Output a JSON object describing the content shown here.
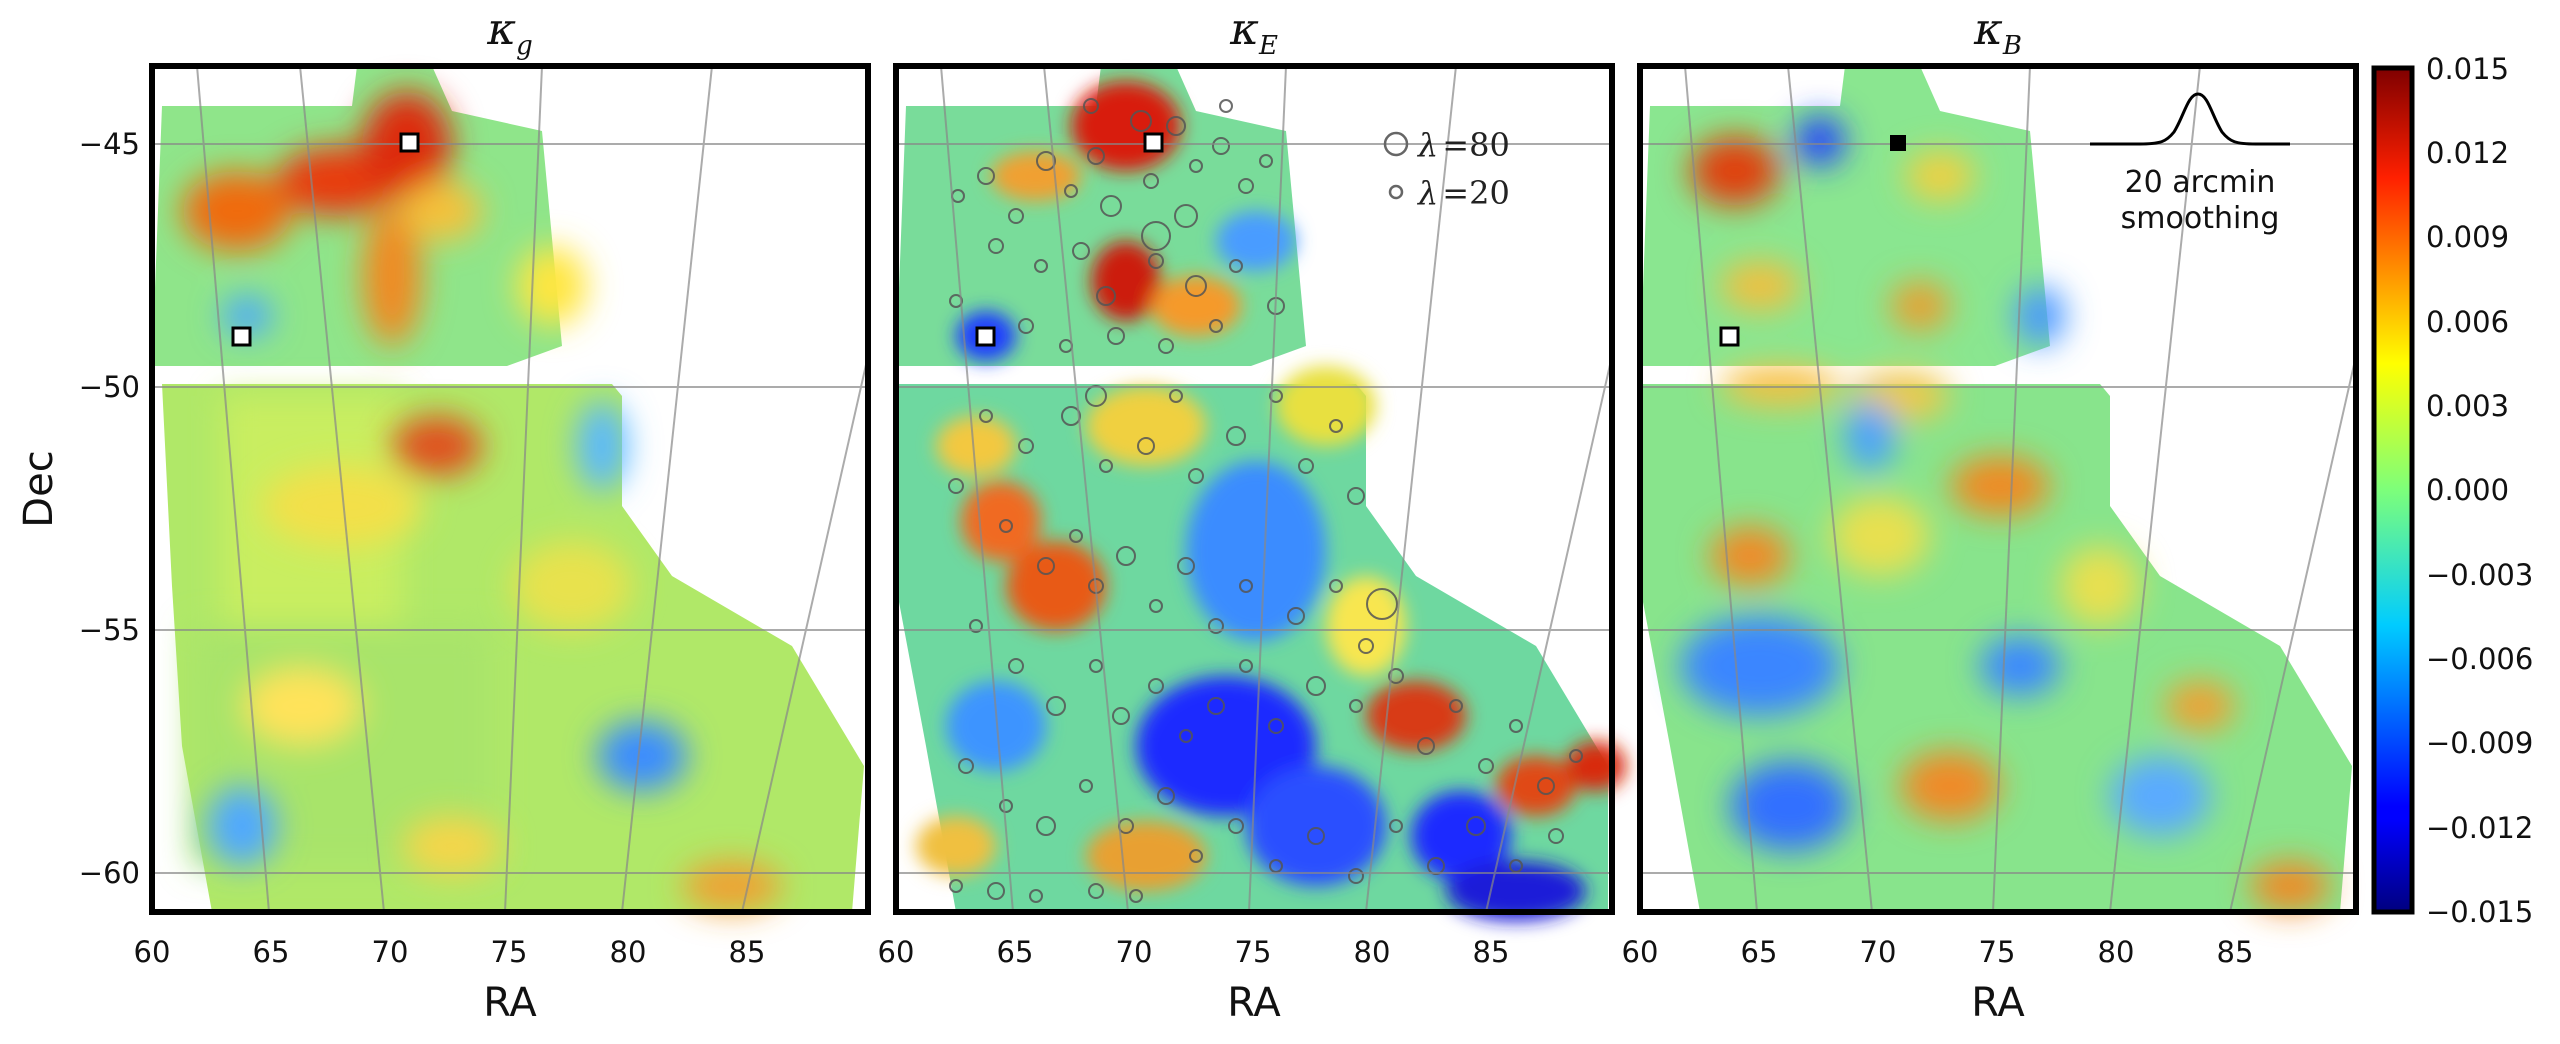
{
  "chart_data": {
    "type": "heatmap",
    "panels": [
      {
        "title_symbol": "κ",
        "title_sub": "g",
        "xlabel": "RA",
        "ylabel": "Dec"
      },
      {
        "title_symbol": "κ",
        "title_sub": "E",
        "xlabel": "RA",
        "ylabel": ""
      },
      {
        "title_symbol": "κ",
        "title_sub": "B",
        "xlabel": "RA",
        "ylabel": ""
      }
    ],
    "xlim": [
      60,
      90
    ],
    "ylim": [
      -61,
      -43.5
    ],
    "xticks": [
      "60",
      "65",
      "70",
      "75",
      "80",
      "85"
    ],
    "yticks": [
      "−45",
      "−50",
      "−55",
      "−60"
    ],
    "ytick_values": [
      -45,
      -50,
      -55,
      -60
    ],
    "xtick_values": [
      60,
      65,
      70,
      75,
      80,
      85
    ],
    "colorbar": {
      "colormap": "jet",
      "range": [
        -0.015,
        0.015
      ],
      "ticks": [
        "0.015",
        "0.012",
        "0.009",
        "0.006",
        "0.003",
        "0.000",
        "−0.003",
        "−0.006",
        "−0.009",
        "−0.012",
        "−0.015"
      ]
    },
    "markers": [
      {
        "ra": 70.9,
        "dec": -45.0,
        "style": "open square"
      },
      {
        "ra": 63.6,
        "dec": -49.0,
        "style": "open square"
      }
    ],
    "legend": {
      "entries": [
        {
          "symbol": "λ",
          "op": "=",
          "value": "80"
        },
        {
          "symbol": "λ",
          "op": "=",
          "value": "20"
        }
      ],
      "location": "top-right of middle panel"
    },
    "annotation": {
      "line1": "20 arcmin",
      "line2": "smoothing",
      "location": "top-right of right panel"
    },
    "grid": true
  }
}
